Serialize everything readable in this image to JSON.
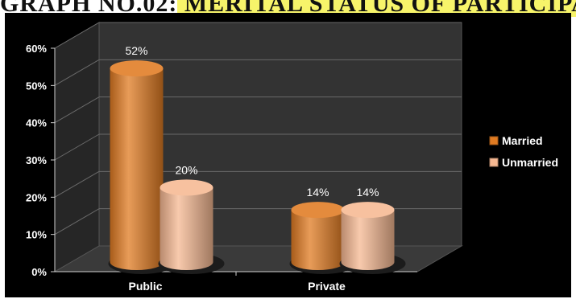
{
  "figure": {
    "title_prefix": "GRAPH NO.02:",
    "title_highlight": " MERITAL STATUS OF PARTICIPANTS"
  },
  "chart_data": {
    "type": "bar",
    "style": "3d-cylinder",
    "categories": [
      "Public",
      "Private"
    ],
    "series": [
      {
        "name": "Married",
        "values": [
          52,
          14
        ],
        "color": "#e07b22"
      },
      {
        "name": "Unmarried",
        "values": [
          20,
          14
        ],
        "color": "#f6b892"
      }
    ],
    "y_ticks": [
      "0%",
      "10%",
      "20%",
      "30%",
      "40%",
      "50%",
      "60%"
    ],
    "ylim": [
      0,
      60
    ],
    "value_suffix": "%",
    "legend_position": "right",
    "grid": true,
    "background": "#000000",
    "wall_color": "#333333",
    "text_color": "#ffffff"
  }
}
